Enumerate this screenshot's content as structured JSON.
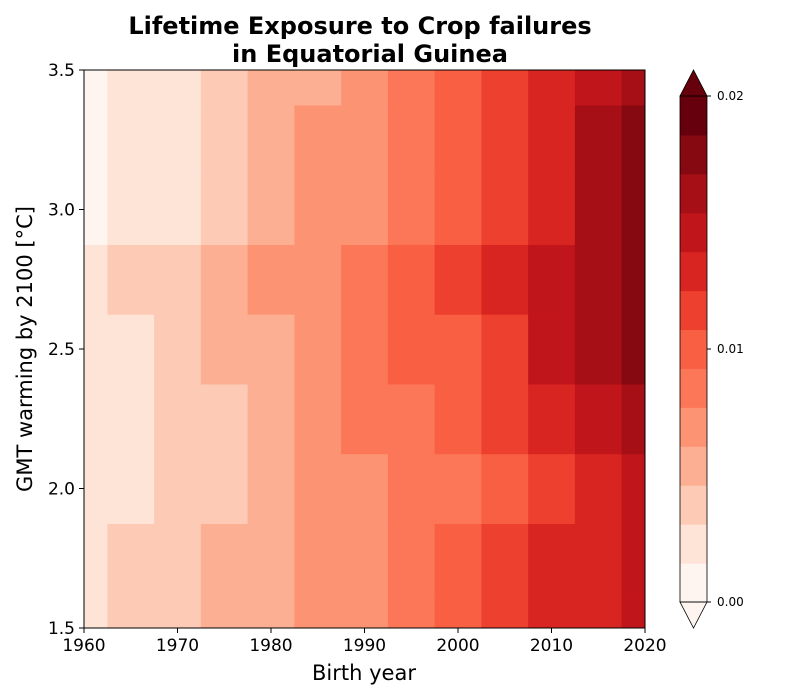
{
  "chart_data": {
    "type": "heatmap",
    "title_lines": [
      "Lifetime Exposure to Crop failures",
      "in Equatorial Guinea"
    ],
    "xlabel": "Birth year",
    "ylabel": "GMT warming by 2100 [°C]",
    "xlim": [
      1960,
      2020
    ],
    "ylim": [
      1.5,
      3.5
    ],
    "x_ticks": [
      "1960",
      "1970",
      "1980",
      "1990",
      "2000",
      "2010",
      "2020"
    ],
    "y_ticks": [
      "1.5",
      "2.0",
      "2.5",
      "3.0",
      "3.5"
    ],
    "colorbar": {
      "min": 0.0,
      "max": 0.02,
      "levels": 13,
      "extend": "both",
      "tick_labels": [
        "0.00",
        "0.01",
        "0.02"
      ],
      "colors": [
        "#fff5f0",
        "#fee3d7",
        "#fdcab5",
        "#fcaf93",
        "#fc9474",
        "#fb7757",
        "#f85f43",
        "#ee402e",
        "#d92522",
        "#c0151a",
        "#a50f15",
        "#860811",
        "#67000d"
      ]
    },
    "x": [
      1960,
      1965,
      1970,
      1975,
      1980,
      1985,
      1990,
      1995,
      2000,
      2005,
      2010,
      2015,
      2020
    ],
    "y": [
      1.5,
      1.75,
      2.0,
      2.25,
      2.5,
      2.75,
      3.0,
      3.25,
      3.5
    ],
    "z_band_index": [
      [
        1,
        2,
        2,
        3,
        3,
        4,
        4,
        5,
        6,
        7,
        8,
        8,
        9
      ],
      [
        1,
        2,
        2,
        3,
        3,
        4,
        4,
        5,
        6,
        7,
        8,
        8,
        9
      ],
      [
        1,
        1,
        2,
        2,
        3,
        4,
        4,
        5,
        5,
        6,
        7,
        8,
        9
      ],
      [
        1,
        1,
        2,
        2,
        3,
        4,
        5,
        5,
        6,
        7,
        8,
        9,
        10
      ],
      [
        1,
        1,
        2,
        3,
        3,
        4,
        5,
        6,
        6,
        7,
        9,
        10,
        11
      ],
      [
        1,
        2,
        2,
        3,
        4,
        4,
        5,
        6,
        7,
        8,
        9,
        10,
        11
      ],
      [
        0,
        1,
        1,
        2,
        3,
        4,
        4,
        5,
        6,
        7,
        8,
        10,
        11
      ],
      [
        0,
        1,
        1,
        2,
        3,
        4,
        4,
        5,
        6,
        7,
        8,
        10,
        11
      ],
      [
        0,
        1,
        1,
        2,
        3,
        3,
        4,
        5,
        6,
        7,
        8,
        9,
        10
      ]
    ]
  }
}
